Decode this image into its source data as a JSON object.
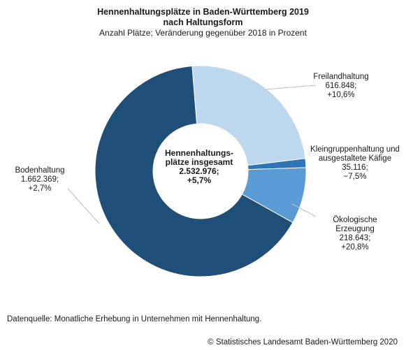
{
  "header": {
    "title_line1": "Hennenhaltungsplätze in Baden-Württemberg 2019",
    "title_line2": "nach Haltungsform",
    "subtitle": "Anzahl Plätze; Veränderung gegenüber 2018 in Prozent"
  },
  "chart_data": {
    "type": "pie",
    "variant": "donut",
    "title": "Hennenhaltungsplätze in Baden-Württemberg 2019 nach Haltungsform",
    "subtitle": "Anzahl Plätze; Veränderung gegenüber 2018 in Prozent",
    "total": {
      "lines": [
        "Hennenhaltungs-",
        "plätze insgesamt",
        "2.532.976;",
        "+5,7%"
      ],
      "value": 2532976,
      "change_pct": 5.7
    },
    "slices": [
      {
        "name": "Freilandhaltung",
        "value": 616848,
        "change_pct": 10.6,
        "label_lines": [
          "Freilandhaltung",
          "616.848;",
          "+10,6%"
        ],
        "color": "#bdd7ee"
      },
      {
        "name": "Kleingruppenhaltung und ausgestaltete Käfige",
        "value": 35116,
        "change_pct": -7.5,
        "label_lines": [
          "Kleingruppenhaltung und",
          "ausgestaltete Käfige",
          "35.116;",
          "−7,5%"
        ],
        "color": "#2e75b6"
      },
      {
        "name": "Ökologische Erzeugung",
        "value": 218643,
        "change_pct": 20.8,
        "label_lines": [
          "Ökologische",
          "Erzeugung",
          "218.643;",
          "+20,8%"
        ],
        "color": "#5b9bd5"
      },
      {
        "name": "Bodenhaltung",
        "value": 1662369,
        "change_pct": 2.7,
        "label_lines": [
          "Bodenhaltung",
          "1.662.369;",
          "+2,7%"
        ],
        "color": "#1f4e79"
      }
    ]
  },
  "footer": {
    "source": "Datenquelle: Monatliche Erhebung in Unternehmen mit Hennenhaltung.",
    "copyright": "© Statistisches Landesamt Baden-Württemberg 2020"
  }
}
